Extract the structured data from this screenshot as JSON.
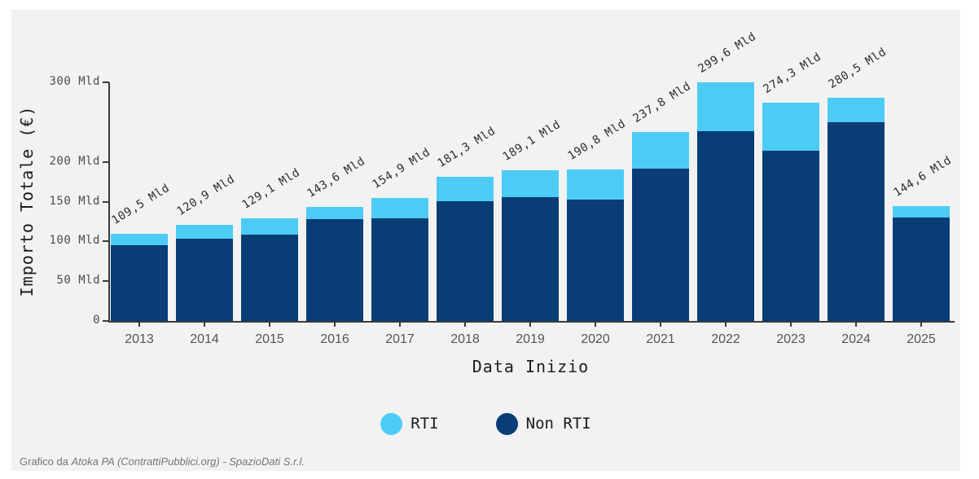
{
  "chart_data": {
    "type": "bar",
    "stacked": true,
    "title": "",
    "xlabel": "Data Inizio",
    "ylabel": "Importo Totale (€)",
    "ylim": [
      0,
      300
    ],
    "grid": false,
    "legend_position": "bottom-center",
    "categories": [
      "2013",
      "2014",
      "2015",
      "2016",
      "2017",
      "2018",
      "2019",
      "2020",
      "2021",
      "2022",
      "2023",
      "2024",
      "2025"
    ],
    "series": [
      {
        "name": "RTI",
        "color": "#4CCCF5",
        "stack": "top",
        "values": [
          14.3,
          17.8,
          20.3,
          16.0,
          25.6,
          30.5,
          33.5,
          38.6,
          46.7,
          60.7,
          60.0,
          30.7,
          14.6
        ]
      },
      {
        "name": "Non RTI",
        "color": "#083D75",
        "stack": "bottom",
        "values": [
          95.2,
          103.1,
          108.8,
          127.6,
          129.3,
          150.8,
          155.6,
          152.2,
          191.1,
          238.9,
          214.3,
          249.8,
          130.0
        ]
      }
    ],
    "totals": [
      109.5,
      120.9,
      129.1,
      143.6,
      154.9,
      181.3,
      189.1,
      190.8,
      237.8,
      299.6,
      274.3,
      280.5,
      144.6
    ],
    "total_labels": [
      "109,5 Mld",
      "120,9 Mld",
      "129,1 Mld",
      "143,6 Mld",
      "154,9 Mld",
      "181,3 Mld",
      "189,1 Mld",
      "190,8 Mld",
      "237,8 Mld",
      "299,6 Mld",
      "274,3 Mld",
      "280,5 Mld",
      "144,6 Mld"
    ],
    "yticks": [
      {
        "value": 0,
        "label": "0"
      },
      {
        "value": 50,
        "label": "50 Mld"
      },
      {
        "value": 100,
        "label": "100 Mld"
      },
      {
        "value": 150,
        "label": "150 Mld"
      },
      {
        "value": 200,
        "label": "200 Mld"
      },
      {
        "value": 300,
        "label": "300 Mld"
      }
    ]
  },
  "legend": {
    "items": [
      {
        "label": "RTI",
        "color": "#4CCCF5"
      },
      {
        "label": "Non RTI",
        "color": "#083D75"
      }
    ]
  },
  "footer": {
    "prefix": "Grafico da ",
    "credit": "Atoka PA (ContrattiPubblici.org) - SpazioDati S.r.l."
  },
  "colors": {
    "panel_background": "#F2F2F2",
    "axis": "#3a3a3a",
    "rti": "#4CCCF5",
    "non_rti": "#083D75"
  }
}
